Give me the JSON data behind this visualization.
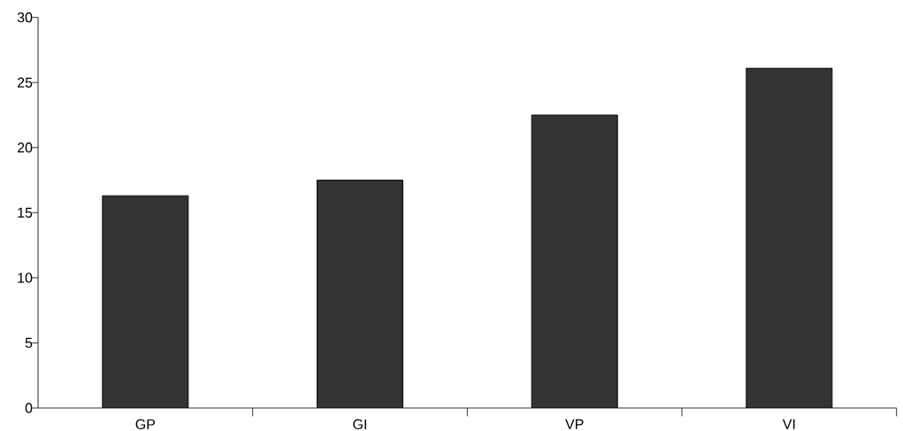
{
  "chart_data": {
    "type": "bar",
    "categories": [
      "GP",
      "GI",
      "VP",
      "VI"
    ],
    "values": [
      16.3,
      17.5,
      22.5,
      26.1
    ],
    "color": "#333333",
    "ylim": [
      0,
      30
    ],
    "yticks": [
      0,
      5,
      10,
      15,
      20,
      25,
      30
    ]
  }
}
